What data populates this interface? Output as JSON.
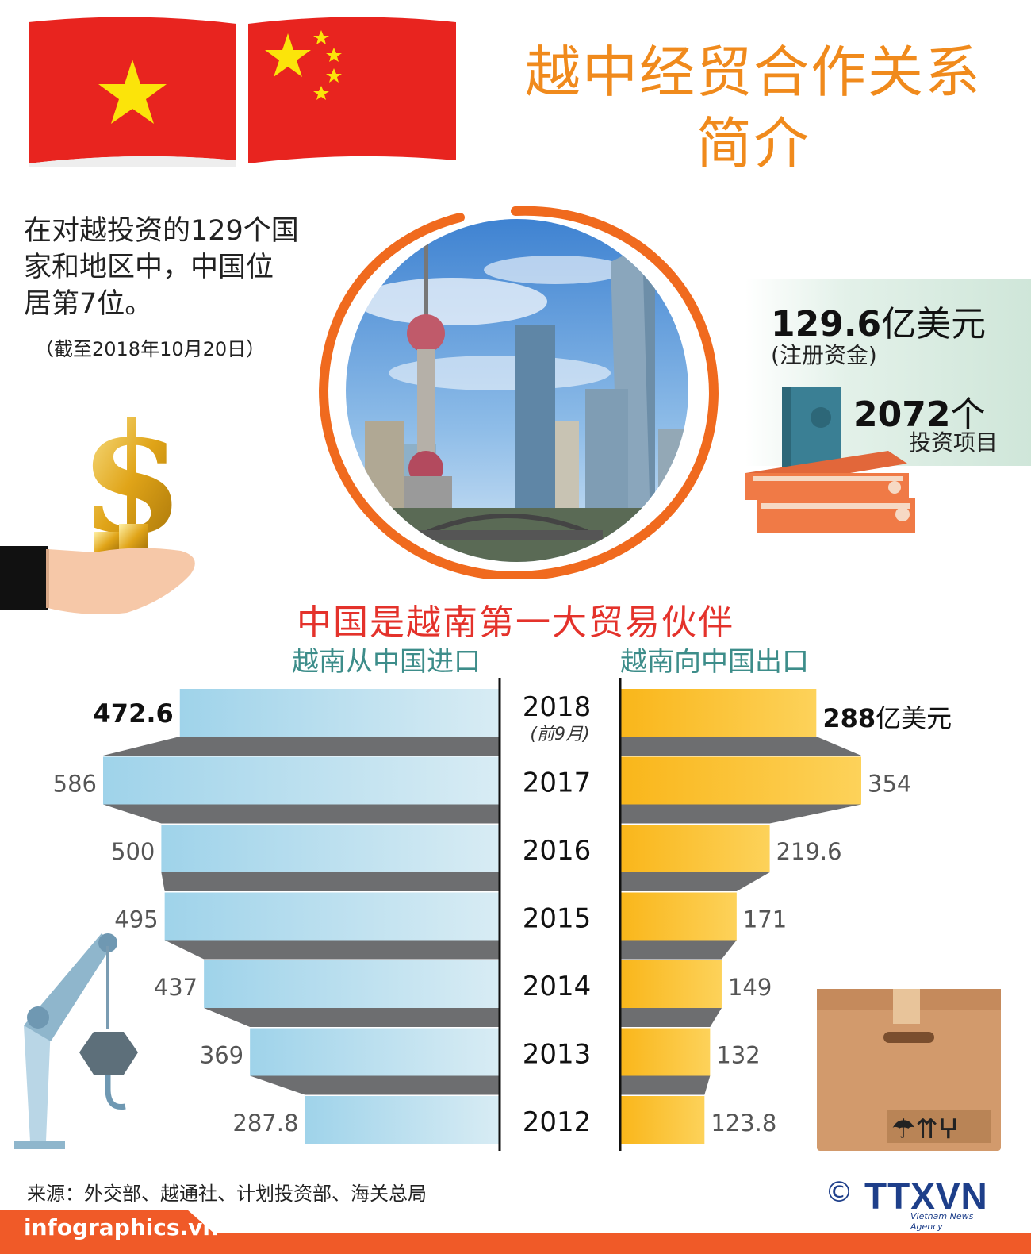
{
  "title": {
    "line1": "越中经贸合作关系",
    "line2": "简介"
  },
  "intro": {
    "text_line1": "在对越投资的129个国",
    "text_line2": "家和地区中，中国位",
    "text_line3": "居第7位。",
    "date": "（截至2018年10月20日）"
  },
  "stats": {
    "capital_value": "129.6",
    "capital_unit": "亿美元",
    "capital_label": "(注册资金)",
    "projects_value": "2072",
    "projects_unit": "个",
    "projects_label": "投资项目"
  },
  "section": {
    "title": "中国是越南第一大贸易伙伴",
    "left_title": "越南从中国进口",
    "right_title": "越南向中国出口"
  },
  "chart_data": {
    "type": "bar",
    "categories": [
      "2018",
      "2017",
      "2016",
      "2015",
      "2014",
      "2013",
      "2012"
    ],
    "category_notes": {
      "2018": "(前9月)"
    },
    "series": [
      {
        "name": "越南从中国进口",
        "values": [
          472.6,
          586,
          500,
          495,
          437,
          369,
          287.8
        ],
        "labels": [
          "472.6",
          "586",
          "500",
          "495",
          "437",
          "369",
          "287.8"
        ]
      },
      {
        "name": "越南向中国出口",
        "values": [
          288,
          354,
          219.6,
          171,
          149,
          132,
          123.8
        ],
        "labels": [
          "288",
          "354",
          "219.6",
          "171",
          "149",
          "132",
          "123.8"
        ]
      }
    ],
    "value_unit": "亿美元",
    "colors": {
      "import": "#a8d8ec",
      "export": "#fbbf2a",
      "connector": "#6d6e70"
    }
  },
  "footer": {
    "source": "来源：外交部、越通社、计划投资部、海关总局",
    "site": "infographics.vn",
    "copyright": "©",
    "logo": "TTXVN",
    "logo_sub": "Vietnam News Agency"
  },
  "colors": {
    "title": "#f08a1c",
    "section_title": "#e4322b",
    "subtitle": "#3d8d8a",
    "footer": "#f05a28"
  },
  "icons": [
    "vietnam-flag-icon",
    "china-flag-icon",
    "dollar-hand-icon",
    "binders-icon",
    "crane-icon",
    "box-icon",
    "city-photo"
  ]
}
